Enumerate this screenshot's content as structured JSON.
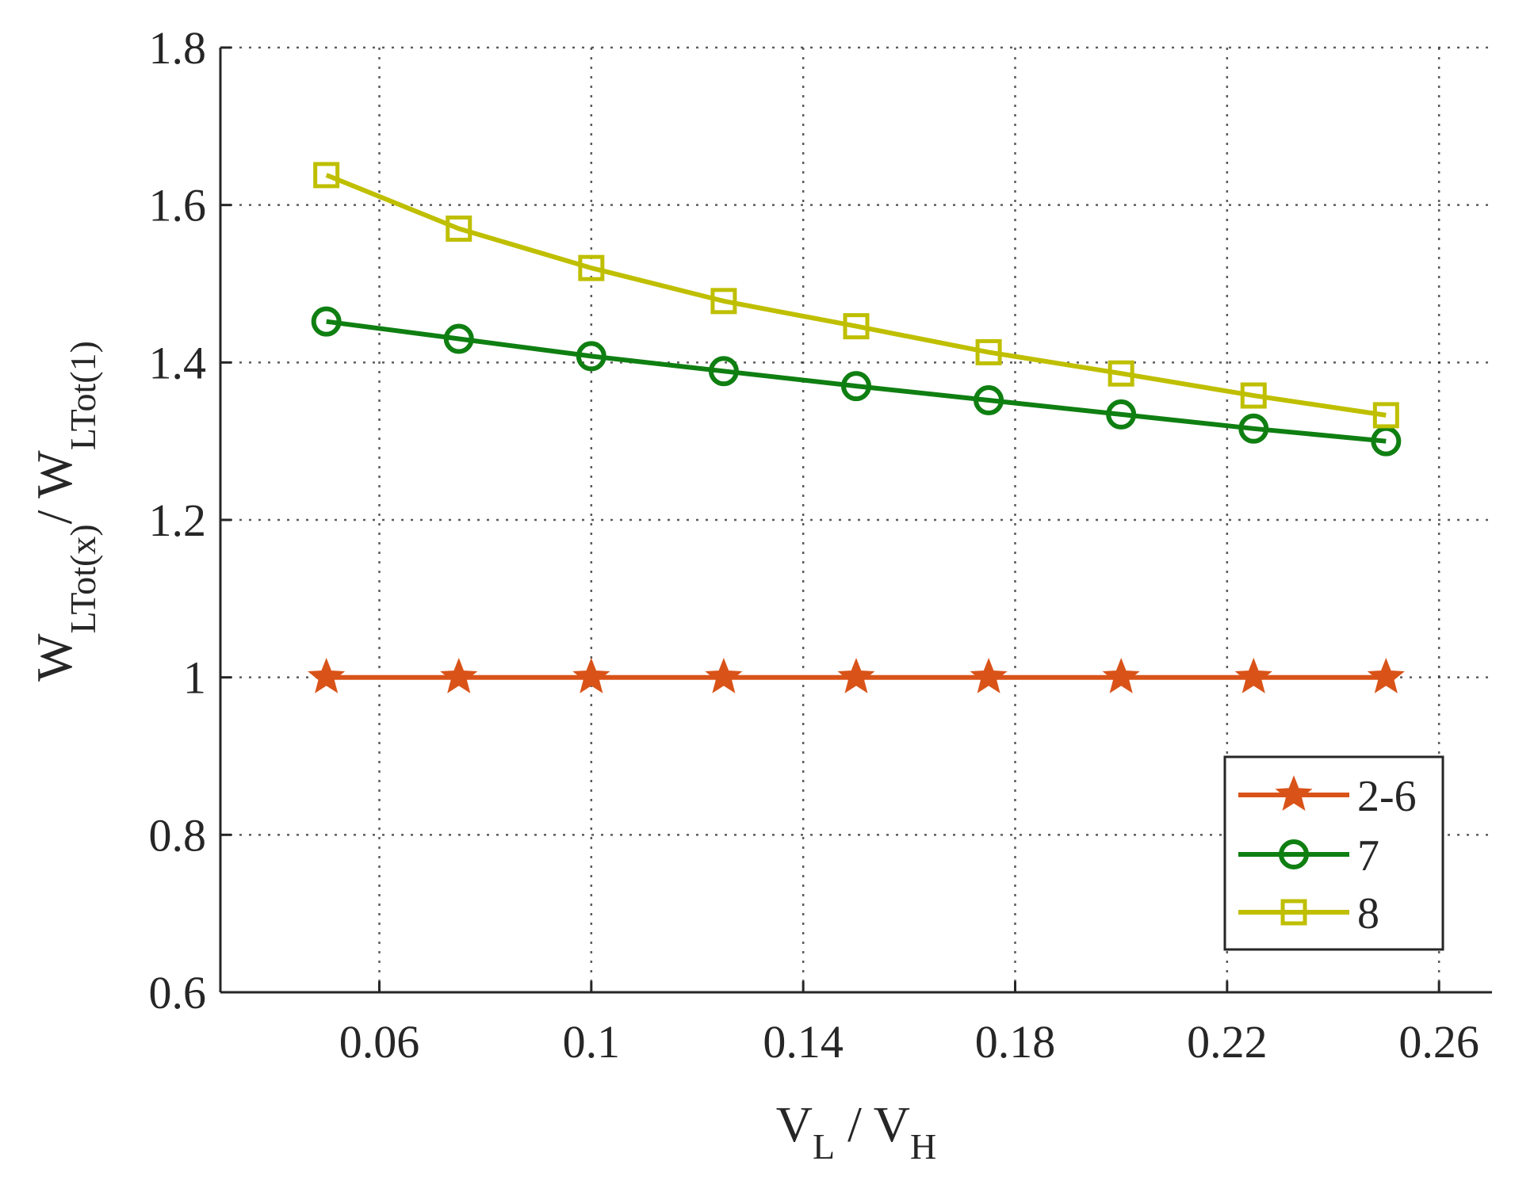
{
  "chart_data": {
    "type": "line",
    "x": [
      0.05,
      0.075,
      0.1,
      0.125,
      0.15,
      0.175,
      0.2,
      0.225,
      0.25
    ],
    "xlim": [
      0.03,
      0.27
    ],
    "ylim": [
      0.6,
      1.8
    ],
    "xticks": [
      0.06,
      0.1,
      0.14,
      0.18,
      0.22,
      0.26
    ],
    "xtick_labels": [
      "0.06",
      "0.1",
      "0.14",
      "0.18",
      "0.22",
      "0.26"
    ],
    "yticks": [
      0.6,
      0.8,
      1.0,
      1.2,
      1.4,
      1.6,
      1.8
    ],
    "ytick_labels": [
      "0.6",
      "0.8",
      "1",
      "1.2",
      "1.4",
      "1.6",
      "1.8"
    ],
    "xlabel": {
      "main1": "V",
      "sub1": "L",
      "mid": " / V",
      "sub2": "H"
    },
    "ylabel": {
      "main1": "W",
      "sub1": "LTot(x)",
      "mid": "/ W",
      "sub2": "LTot(1)"
    },
    "grid": true,
    "legend_position": "bottom-right",
    "series": [
      {
        "name": "2-6",
        "color": "#d95319",
        "marker": "star",
        "values": [
          1.0,
          1.0,
          1.0,
          1.0,
          1.0,
          1.0,
          1.0,
          1.0,
          1.0
        ]
      },
      {
        "name": "7",
        "color": "#0f7f12",
        "marker": "circle",
        "values": [
          1.452,
          1.43,
          1.408,
          1.389,
          1.37,
          1.352,
          1.334,
          1.316,
          1.3
        ]
      },
      {
        "name": "8",
        "color": "#bfbf00",
        "marker": "square",
        "values": [
          1.638,
          1.57,
          1.52,
          1.478,
          1.446,
          1.413,
          1.386,
          1.358,
          1.333
        ]
      }
    ]
  }
}
